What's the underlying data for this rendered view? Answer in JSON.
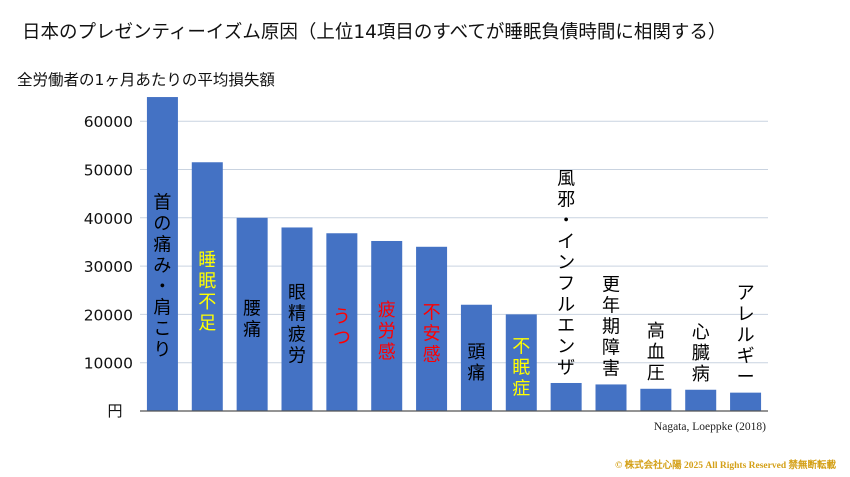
{
  "title": "日本のプレゼンティーイズム原因（上位14項目のすべてが睡眠負債時間に相関する）",
  "subtitle": "全労働者の1ヶ月あたりの平均損失額",
  "source": "Nagata, Loeppke (2018)",
  "copyright": "© 株式会社心陽 2025 All Rights Reserved  禁無断転載",
  "chart_data": {
    "type": "bar",
    "title": "全労働者の1ヶ月あたりの平均損失額",
    "ylabel": "円",
    "ylim": [
      0,
      70000
    ],
    "yticks": [
      10000,
      20000,
      30000,
      40000,
      50000,
      60000
    ],
    "unit_label": "円",
    "grid": true,
    "categories": [
      "首の痛み・肩こり",
      "睡眠不足",
      "腰痛",
      "眼精疲労",
      "うつ",
      "疲労感",
      "不安感",
      "頭痛",
      "不眠症",
      "風邪・インフルエンザ",
      "更年期障害",
      "高血圧",
      "心臓病",
      "アレルギー"
    ],
    "values": [
      65000,
      51500,
      40000,
      38000,
      36800,
      35200,
      34000,
      22000,
      20000,
      5800,
      5500,
      4600,
      4400,
      3800
    ],
    "label_colors": [
      "#000000",
      "#ffff00",
      "#000000",
      "#000000",
      "#ff0000",
      "#ff0000",
      "#ff0000",
      "#000000",
      "#ffff00",
      "#000000",
      "#000000",
      "#000000",
      "#000000",
      "#000000"
    ],
    "bar_color": "#4472c4",
    "grid_color": "#c9d3e0"
  }
}
